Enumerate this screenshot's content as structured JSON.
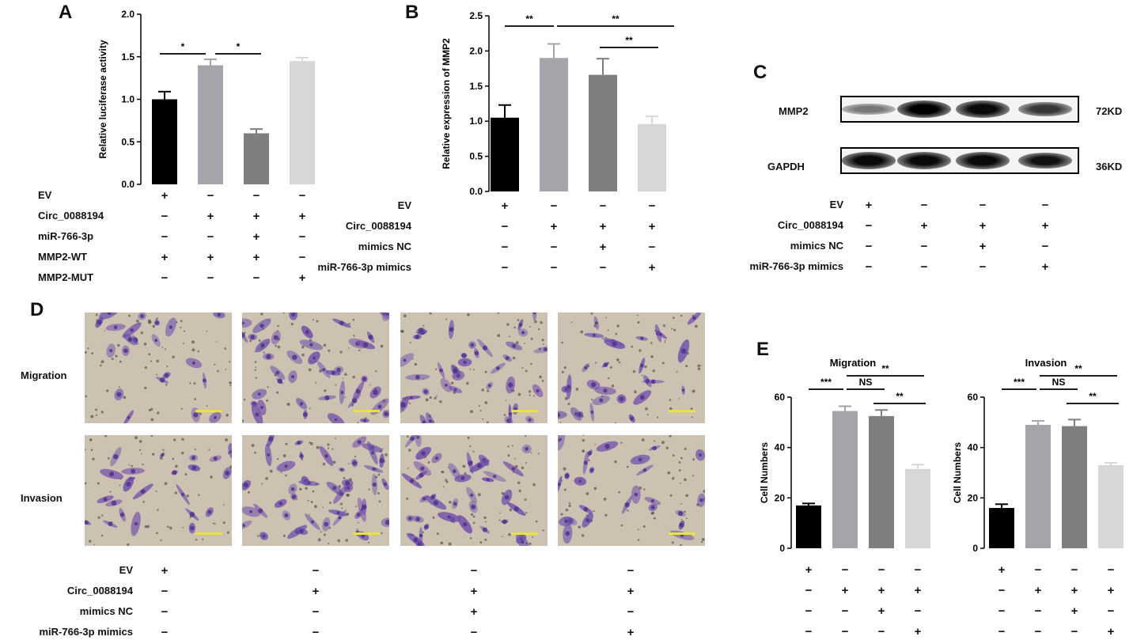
{
  "panels": {
    "A": {
      "letter": "A"
    },
    "B": {
      "letter": "B"
    },
    "C": {
      "letter": "C"
    },
    "D": {
      "letter": "D"
    },
    "E": {
      "letter": "E"
    }
  },
  "chart_data": [
    {
      "id": "A",
      "type": "bar",
      "title": "",
      "ylabel": "Relative luciferase activity",
      "ylim": [
        0,
        2.0
      ],
      "yticks": [
        "0.0",
        "0.5",
        "1.0",
        "1.5",
        "2.0"
      ],
      "values": [
        1.0,
        1.4,
        0.6,
        1.45
      ],
      "errors": [
        0.09,
        0.07,
        0.05,
        0.04
      ],
      "colors": [
        "#000000",
        "#a4a4aa",
        "#7f7f7f",
        "#d7d7d7"
      ],
      "significance": [
        {
          "from": 0,
          "to": 1,
          "label": "*"
        },
        {
          "from": 1,
          "to": 2,
          "label": "*"
        }
      ],
      "conditions": [
        {
          "label": "EV",
          "signs": [
            "+",
            "−",
            "−",
            "−"
          ]
        },
        {
          "label": "Circ_0088194",
          "signs": [
            "−",
            "+",
            "+",
            "+"
          ]
        },
        {
          "label": "miR-766-3p",
          "signs": [
            "−",
            "−",
            "+",
            "−"
          ]
        },
        {
          "label": "MMP2-WT",
          "signs": [
            "+",
            "+",
            "+",
            "−"
          ]
        },
        {
          "label": "MMP2-MUT",
          "signs": [
            "−",
            "−",
            "−",
            "+"
          ]
        }
      ]
    },
    {
      "id": "B",
      "type": "bar",
      "title": "",
      "ylabel": "Relative  expression  of  MMP2",
      "ylim": [
        0,
        2.5
      ],
      "yticks": [
        "0.0",
        "0.5",
        "1.0",
        "1.5",
        "2.0",
        "2.5"
      ],
      "values": [
        1.05,
        1.9,
        1.66,
        0.96
      ],
      "errors": [
        0.18,
        0.2,
        0.23,
        0.11
      ],
      "colors": [
        "#000000",
        "#a4a4aa",
        "#7f7f7f",
        "#d7d7d7"
      ],
      "significance": [
        {
          "from": 0,
          "to": 1,
          "label": "**"
        },
        {
          "from": 1,
          "to": 3,
          "label": "**"
        },
        {
          "from": 2,
          "to": 3,
          "label": "**"
        }
      ],
      "conditions": [
        {
          "label": "EV",
          "signs": [
            "+",
            "−",
            "−",
            "−"
          ]
        },
        {
          "label": "Circ_0088194",
          "signs": [
            "−",
            "+",
            "+",
            "+"
          ]
        },
        {
          "label": "mimics NC",
          "signs": [
            "−",
            "−",
            "+",
            "−"
          ]
        },
        {
          "label": "miR-766-3p  mimics",
          "signs": [
            "−",
            "−",
            "−",
            "+"
          ]
        }
      ]
    },
    {
      "id": "E1",
      "type": "bar",
      "title": "Migration",
      "ylabel": "Cell Numbers",
      "ylim": [
        0,
        60
      ],
      "yticks": [
        "0",
        "20",
        "40",
        "60"
      ],
      "values": [
        17,
        54.5,
        52.5,
        31.5
      ],
      "errors": [
        0.8,
        1.9,
        2.4,
        1.7
      ],
      "colors": [
        "#000000",
        "#a4a4aa",
        "#7f7f7f",
        "#d7d7d7"
      ],
      "significance": [
        {
          "from": 0,
          "to": 1,
          "label": "***"
        },
        {
          "from": 1,
          "to": 2,
          "label": "NS"
        },
        {
          "from": 1,
          "to": 3,
          "label": "**"
        },
        {
          "from": 2,
          "to": 3,
          "label": "**"
        }
      ],
      "conditions": [
        {
          "label": "",
          "signs": [
            "+",
            "−",
            "−",
            "−"
          ]
        },
        {
          "label": "",
          "signs": [
            "−",
            "+",
            "+",
            "+"
          ]
        },
        {
          "label": "",
          "signs": [
            "−",
            "−",
            "+",
            "−"
          ]
        },
        {
          "label": "",
          "signs": [
            "−",
            "−",
            "−",
            "+"
          ]
        }
      ]
    },
    {
      "id": "E2",
      "type": "bar",
      "title": "Invasion",
      "ylabel": "Cell Numbers",
      "ylim": [
        0,
        60
      ],
      "yticks": [
        "0",
        "20",
        "40",
        "60"
      ],
      "values": [
        16,
        49,
        48.5,
        33
      ],
      "errors": [
        1.5,
        1.6,
        2.6,
        0.9
      ],
      "colors": [
        "#000000",
        "#a4a4aa",
        "#7f7f7f",
        "#d7d7d7"
      ],
      "significance": [
        {
          "from": 0,
          "to": 1,
          "label": "***"
        },
        {
          "from": 1,
          "to": 2,
          "label": "NS"
        },
        {
          "from": 1,
          "to": 3,
          "label": "**"
        },
        {
          "from": 2,
          "to": 3,
          "label": "**"
        }
      ],
      "conditions": [
        {
          "label": "",
          "signs": [
            "+",
            "−",
            "−",
            "−"
          ]
        },
        {
          "label": "",
          "signs": [
            "−",
            "+",
            "+",
            "+"
          ]
        },
        {
          "label": "",
          "signs": [
            "−",
            "−",
            "+",
            "−"
          ]
        },
        {
          "label": "",
          "signs": [
            "−",
            "−",
            "−",
            "+"
          ]
        }
      ]
    }
  ],
  "western_blot": {
    "rows": [
      {
        "protein": "MMP2",
        "size": "72KD",
        "intensities": [
          0.35,
          1.0,
          0.95,
          0.7
        ]
      },
      {
        "protein": "GAPDH",
        "size": "36KD",
        "intensities": [
          0.95,
          0.95,
          0.95,
          0.9
        ]
      }
    ],
    "conditions": [
      {
        "label": "EV",
        "signs": [
          "+",
          "−",
          "−",
          "−"
        ]
      },
      {
        "label": "Circ_0088194",
        "signs": [
          "−",
          "+",
          "+",
          "+"
        ]
      },
      {
        "label": "mimics NC",
        "signs": [
          "−",
          "−",
          "+",
          "−"
        ]
      },
      {
        "label": "miR-766-3p  mimics",
        "signs": [
          "−",
          "−",
          "−",
          "+"
        ]
      }
    ]
  },
  "microscopy": {
    "rows": [
      {
        "label": "Migration",
        "density": [
          0.35,
          0.85,
          0.75,
          0.5
        ]
      },
      {
        "label": "Invasion",
        "density": [
          0.4,
          0.9,
          0.8,
          0.45
        ]
      }
    ],
    "conditions": [
      {
        "label": "EV",
        "signs": [
          "+",
          "−",
          "−",
          "−"
        ]
      },
      {
        "label": "Circ_0088194",
        "signs": [
          "−",
          "+",
          "+",
          "+"
        ]
      },
      {
        "label": "mimics NC",
        "signs": [
          "−",
          "−",
          "+",
          "−"
        ]
      },
      {
        "label": "miR-766-3p  mimics",
        "signs": [
          "−",
          "−",
          "−",
          "+"
        ]
      }
    ]
  }
}
